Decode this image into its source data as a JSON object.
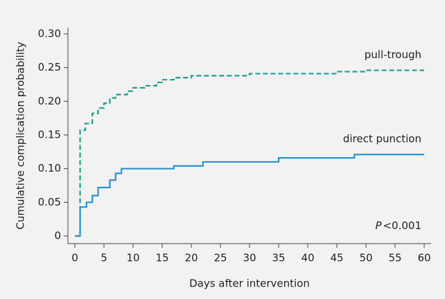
{
  "chart_data": {
    "type": "step",
    "x_label": "Days after intervention",
    "y_label": "Cumulative complication probability",
    "xlim": [
      0,
      60
    ],
    "xticks": [
      0,
      5,
      10,
      15,
      20,
      25,
      30,
      35,
      40,
      45,
      50,
      55,
      60
    ],
    "ylim": [
      0,
      0.3
    ],
    "yticks": [
      0,
      0.05,
      {
        "value": 0.1,
        "label": "0.10"
      },
      0.15,
      {
        "value": 0.2,
        "label": "0.20"
      },
      0.25,
      {
        "value": 0.3,
        "label": "0.30"
      }
    ],
    "series": [
      {
        "name": "pull-trough",
        "color": "#1b9e8a",
        "dashed": true,
        "x": [
          0,
          0.9,
          1.8,
          3,
          4,
          5,
          6,
          7,
          9,
          10,
          12,
          14,
          15,
          17,
          20,
          30,
          45,
          50,
          60
        ],
        "values": [
          0,
          0.157,
          0.167,
          0.182,
          0.19,
          0.197,
          0.205,
          0.21,
          0.215,
          0.22,
          0.223,
          0.228,
          0.232,
          0.235,
          0.238,
          0.241,
          0.244,
          0.246,
          0.246
        ]
      },
      {
        "name": "direct punction",
        "color": "#2b93cc",
        "dashed": false,
        "x": [
          0,
          0.9,
          2,
          3,
          4,
          6,
          7,
          8,
          17,
          22,
          35,
          48,
          60
        ],
        "values": [
          0,
          0.043,
          0.05,
          0.06,
          0.072,
          0.083,
          0.093,
          0.1,
          0.104,
          0.11,
          0.116,
          0.121,
          0.121
        ]
      }
    ],
    "p_value": {
      "symbol": "P",
      "text": "<0.001"
    }
  }
}
